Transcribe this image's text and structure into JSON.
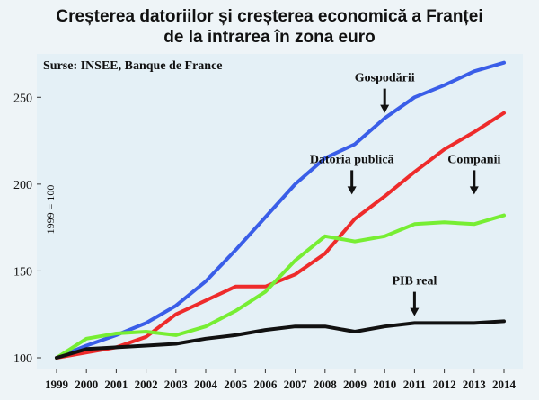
{
  "chart_data": {
    "type": "line",
    "title_line1": "Creșterea datoriilor și creșterea economică a Franței",
    "title_line2": "de la intrarea în zona euro",
    "source": "Surse: INSEE, Banque de France",
    "ylabel": "1999 = 100",
    "ylim": [
      100,
      275
    ],
    "yticks": [
      100,
      150,
      200,
      250
    ],
    "x": [
      "1999",
      "2000",
      "2001",
      "2002",
      "2003",
      "2004",
      "2005",
      "2006",
      "2007",
      "2008",
      "2009",
      "2010",
      "2011",
      "2012",
      "2013",
      "2014"
    ],
    "grid": false,
    "series": [
      {
        "name": "Gospodării",
        "color": "#3a5ee8",
        "values": [
          100,
          107,
          113,
          120,
          130,
          144,
          162,
          181,
          200,
          215,
          223,
          238,
          250,
          257,
          265,
          270
        ]
      },
      {
        "name": "Datoria publică",
        "color": "#ee2b2b",
        "values": [
          100,
          103,
          106,
          112,
          125,
          133,
          141,
          141,
          148,
          160,
          180,
          193,
          207,
          220,
          230,
          241
        ]
      },
      {
        "name": "Companii",
        "color": "#77ee33",
        "values": [
          100,
          111,
          114,
          115,
          113,
          118,
          127,
          138,
          156,
          170,
          167,
          170,
          177,
          178,
          177,
          182
        ]
      },
      {
        "name": "PIB real",
        "color": "#111111",
        "values": [
          100,
          105,
          106,
          107,
          108,
          111,
          113,
          116,
          118,
          118,
          115,
          118,
          120,
          120,
          120,
          121
        ]
      }
    ],
    "annotations": [
      {
        "text": "Gospodării",
        "year": "2010",
        "value": 255
      },
      {
        "text": "Datoria publică",
        "year": "2008.9",
        "value": 208
      },
      {
        "text": "Companii",
        "year": "2013",
        "value": 208
      },
      {
        "text": "PIB real",
        "year": "2011",
        "value": 138
      }
    ]
  }
}
